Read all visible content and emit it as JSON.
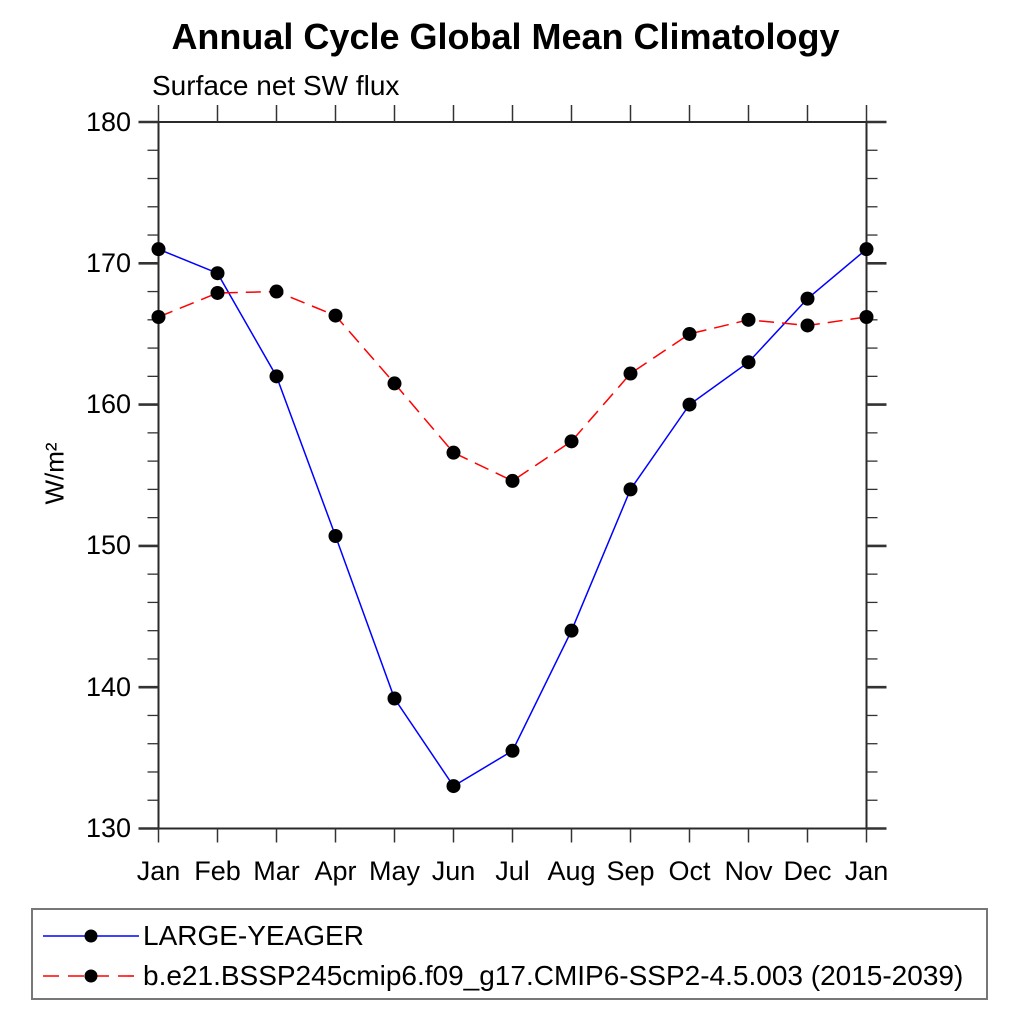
{
  "title": "Annual Cycle Global Mean Climatology",
  "subtitle": "Surface net SW flux",
  "y_axis": {
    "label": "W/m²",
    "tick_labels": [
      "180",
      "170",
      "160",
      "150",
      "140",
      "130"
    ],
    "min": 130,
    "max": 180,
    "major_step": 10,
    "minor_step": 2
  },
  "x_axis": {
    "tick_labels": [
      "Jan",
      "Feb",
      "Mar",
      "Apr",
      "May",
      "Jun",
      "Jul",
      "Aug",
      "Sep",
      "Oct",
      "Nov",
      "Dec",
      "Jan"
    ]
  },
  "colors": {
    "series1": "#0000ff",
    "series2": "#ff0000",
    "marker": "#000000",
    "frame": "#2a2a2a",
    "tick": "#333333"
  },
  "chart_data": {
    "type": "line",
    "title": "Annual Cycle Global Mean Climatology",
    "subtitle": "Surface net SW flux",
    "ylabel": "W/m²",
    "ylim": [
      130,
      180
    ],
    "grid": false,
    "legend_position": "bottom",
    "categories": [
      "Jan",
      "Feb",
      "Mar",
      "Apr",
      "May",
      "Jun",
      "Jul",
      "Aug",
      "Sep",
      "Oct",
      "Nov",
      "Dec",
      "Jan"
    ],
    "series": [
      {
        "name": "LARGE-YEAGER",
        "color": "#0000ff",
        "line_style": "solid",
        "marker": "circle",
        "marker_color": "#000000",
        "values": [
          171.0,
          169.3,
          162.0,
          150.7,
          139.2,
          133.0,
          135.5,
          144.0,
          154.0,
          160.0,
          163.0,
          167.5,
          171.0
        ]
      },
      {
        "name": "b.e21.BSSP245cmip6.f09_g17.CMIP6-SSP2-4.5.003 (2015-2039)",
        "color": "#ff0000",
        "line_style": "dashed",
        "marker": "circle",
        "marker_color": "#000000",
        "values": [
          166.2,
          167.9,
          168.0,
          166.3,
          161.5,
          156.6,
          154.6,
          157.4,
          162.2,
          165.0,
          166.0,
          165.6,
          166.2
        ]
      }
    ]
  }
}
